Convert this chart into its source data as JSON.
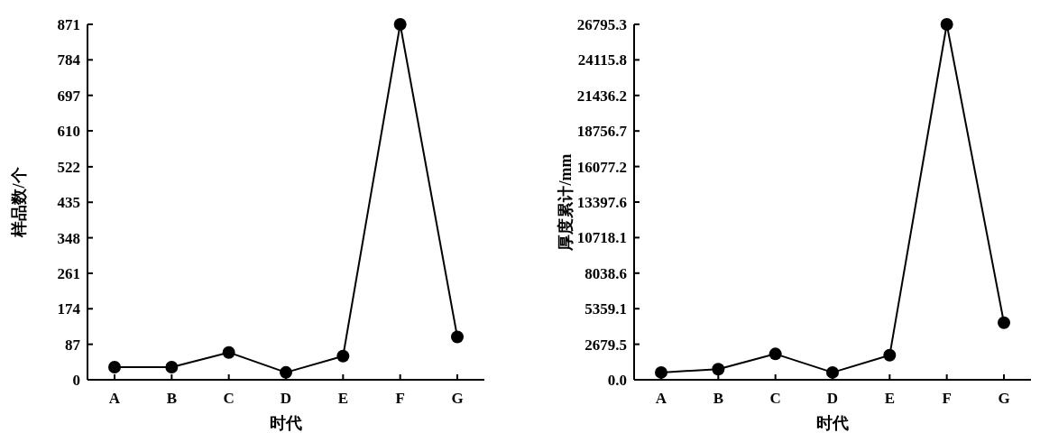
{
  "chart_data": [
    {
      "type": "line",
      "categories": [
        "A",
        "B",
        "C",
        "D",
        "E",
        "F",
        "G"
      ],
      "xlabel": "时代",
      "ylabel": "样品数/个",
      "marker": "circle",
      "grid": false,
      "series": [
        {
          "color": "#000000",
          "values": [
            31,
            31,
            67,
            18,
            58,
            871,
            105
          ]
        }
      ],
      "ylim": [
        0,
        871
      ],
      "yticks": [
        0,
        87,
        174,
        261,
        348,
        435,
        522,
        610,
        697,
        784,
        871
      ]
    },
    {
      "type": "line",
      "categories": [
        "A",
        "B",
        "C",
        "D",
        "E",
        "F",
        "G"
      ],
      "xlabel": "时代",
      "ylabel": "厚度累计/mm",
      "marker": "circle",
      "grid": false,
      "series": [
        {
          "color": "#000000",
          "values": [
            550,
            800,
            1950,
            550,
            1850,
            26795.3,
            4300
          ]
        }
      ],
      "ylim": [
        0,
        26795.3
      ],
      "yticks": [
        {
          "value": 0,
          "label": "0.0"
        },
        {
          "value": 2679.5,
          "label": "2679.5"
        },
        {
          "value": 5359.1,
          "label": "5359.1"
        },
        {
          "value": 8038.6,
          "label": "8038.6"
        },
        {
          "value": 10718.1,
          "label": "10718.1"
        },
        {
          "value": 13397.6,
          "label": "13397.6"
        },
        {
          "value": 16077.2,
          "label": "16077.2"
        },
        {
          "value": 18756.7,
          "label": "18756.7"
        },
        {
          "value": 21436.2,
          "label": "21436.2"
        },
        {
          "value": 24115.8,
          "label": "24115.8"
        },
        {
          "value": 26795.3,
          "label": "26795.3"
        }
      ]
    }
  ]
}
